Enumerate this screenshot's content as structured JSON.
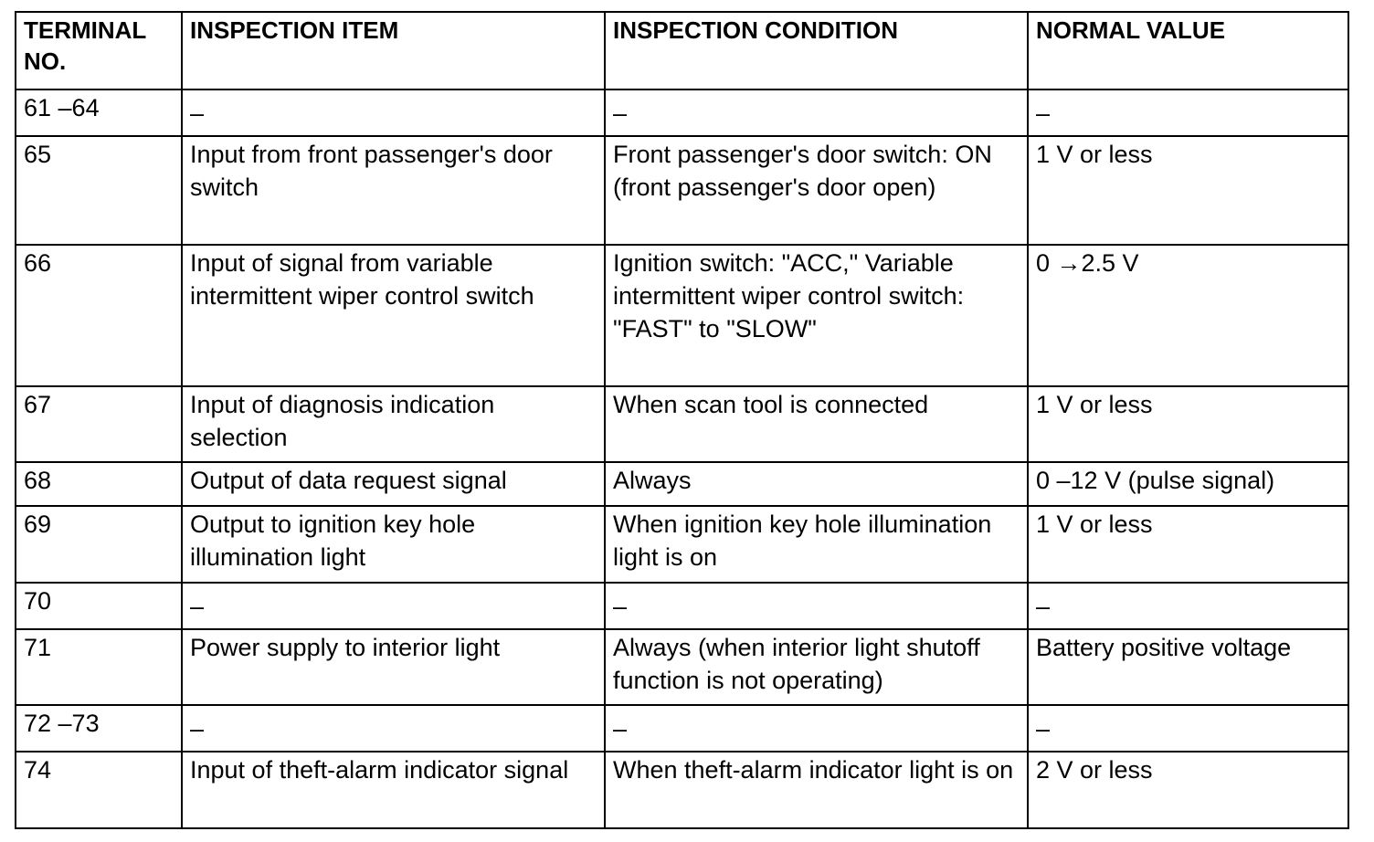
{
  "headers": [
    "TERMINAL NO.",
    "INSPECTION ITEM",
    "INSPECTION CONDITION",
    "NORMAL VALUE"
  ],
  "rows": [
    {
      "terminal": "61 –64",
      "item": "–",
      "condition": "–",
      "value": "–"
    },
    {
      "terminal": "65",
      "item": "Input from front passenger's door switch",
      "condition": "Front passenger's door switch: ON (front passenger's door open)",
      "value": "1 V or less"
    },
    {
      "terminal": "66",
      "item": "Input of signal from variable intermittent wiper control switch",
      "condition": "Ignition switch: \"ACC,\" Variable intermittent wiper control switch: \"FAST\" to \"SLOW\"",
      "value": "0 →2.5 V"
    },
    {
      "terminal": "67",
      "item": "Input of diagnosis indication selection",
      "condition": "When scan tool is connected",
      "value": "1 V or less"
    },
    {
      "terminal": "68",
      "item": "Output of data request signal",
      "condition": "Always",
      "value": "0 –12 V (pulse signal)"
    },
    {
      "terminal": "69",
      "item": "Output to ignition key hole illumination light",
      "condition": "When ignition key hole illumination light is on",
      "value": "1 V or less"
    },
    {
      "terminal": "70",
      "item": "–",
      "condition": "–",
      "value": "–"
    },
    {
      "terminal": "71",
      "item": "Power supply to interior light",
      "condition": "Always (when interior light shutoff function is not operating)",
      "value": "Battery positive voltage"
    },
    {
      "terminal": "72 –73",
      "item": "–",
      "condition": "–",
      "value": "–"
    },
    {
      "terminal": "74",
      "item": "Input of theft-alarm indicator signal",
      "condition": "When theft-alarm indicator light is on",
      "value": "2 V or less"
    }
  ]
}
